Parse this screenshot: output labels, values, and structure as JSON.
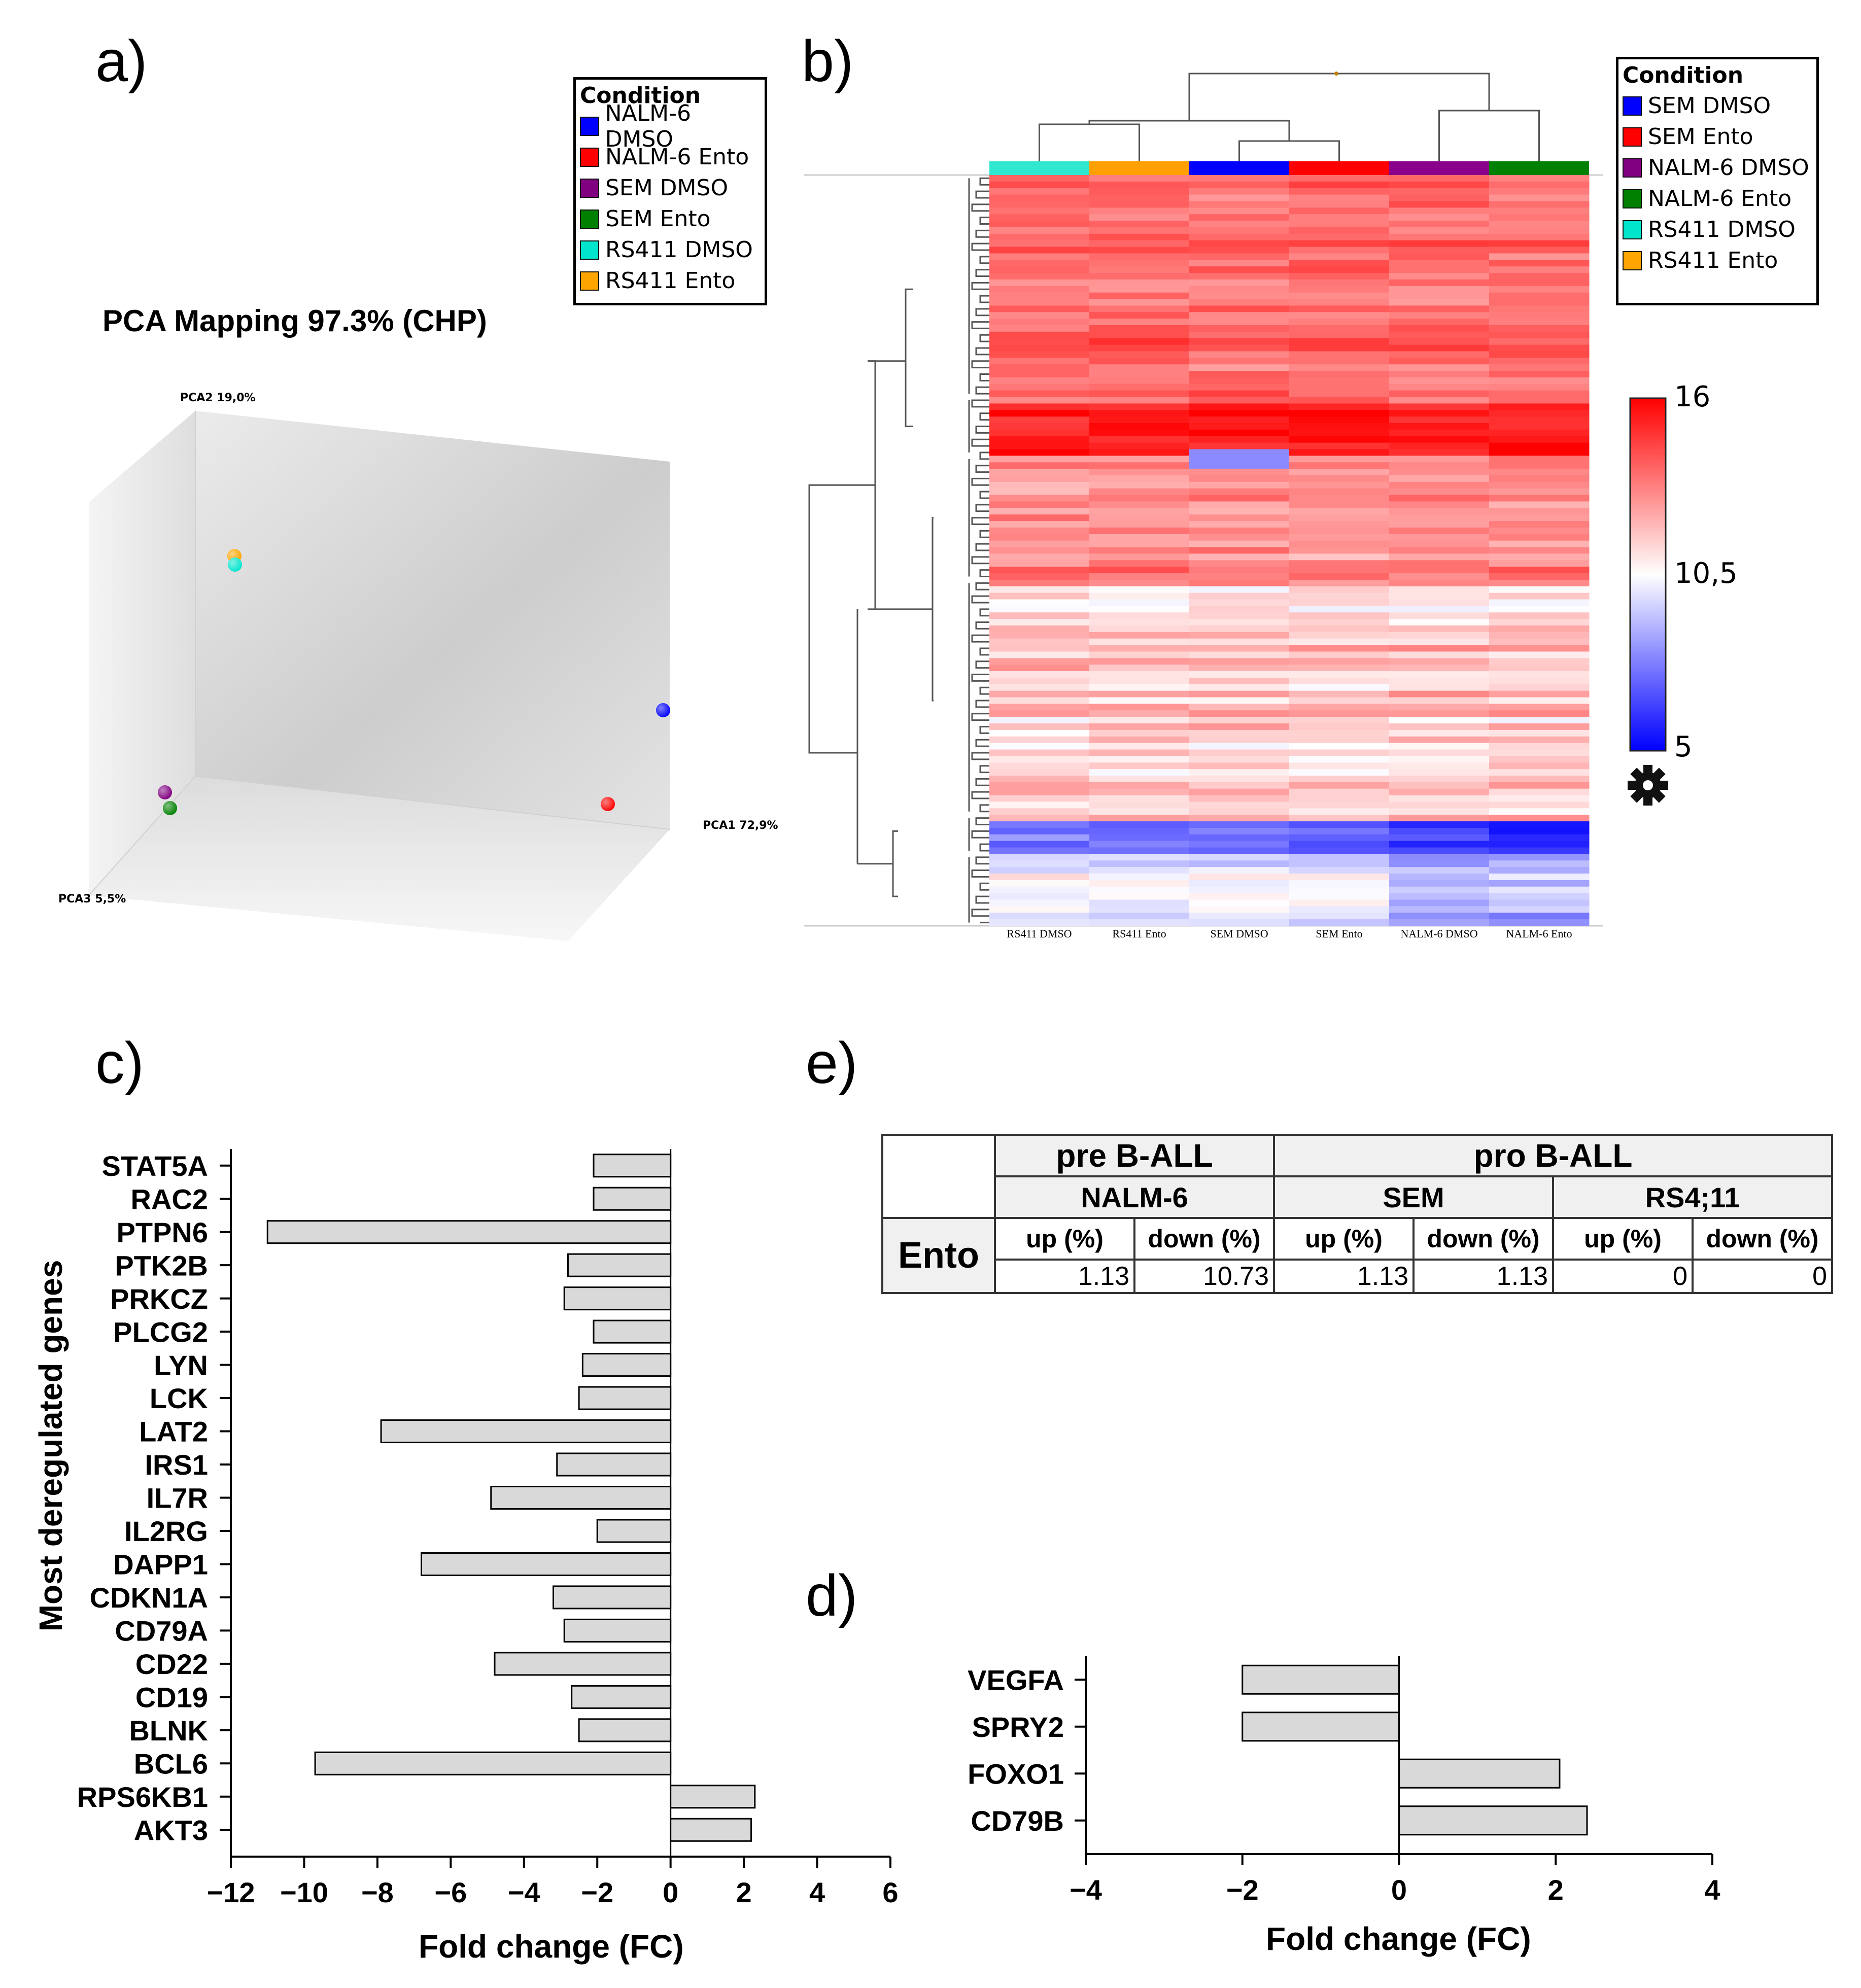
{
  "panels": {
    "a": "a)",
    "b": "b)",
    "c": "c)",
    "d": "d)",
    "e": "e)"
  },
  "panel_a": {
    "title": "PCA Mapping 97.3% (CHP)",
    "legend_title": "Condition",
    "legend": [
      {
        "label": "NALM-6 DMSO",
        "color": "#0000ff"
      },
      {
        "label": "NALM-6 Ento",
        "color": "#ff0000"
      },
      {
        "label": "SEM DMSO",
        "color": "#800080"
      },
      {
        "label": "SEM Ento",
        "color": "#008000"
      },
      {
        "label": "RS411 DMSO",
        "color": "#00e5cc"
      },
      {
        "label": "RS411 Ento",
        "color": "#ffa500"
      }
    ],
    "axis_pca1": "PCA1 72,9%",
    "axis_pca2": "PCA2 19,0%",
    "axis_pca3": "PCA3 5,5%"
  },
  "panel_b": {
    "legend_title": "Condition",
    "legend": [
      {
        "label": "SEM DMSO",
        "color": "#0000ff"
      },
      {
        "label": "SEM Ento",
        "color": "#ff0000"
      },
      {
        "label": "NALM-6 DMSO",
        "color": "#800080"
      },
      {
        "label": "NALM-6 Ento",
        "color": "#008000"
      },
      {
        "label": "RS411 DMSO",
        "color": "#00e5cc"
      },
      {
        "label": "RS411 Ento",
        "color": "#ffa500"
      }
    ],
    "columns": [
      "RS411 DMSO",
      "RS411 Ento",
      "SEM DMSO",
      "SEM Ento",
      "NALM-6 DMSO",
      "NALM-6 Ento"
    ],
    "column_colors": [
      "#30e8d0",
      "#ffa000",
      "#0000ff",
      "#ff0000",
      "#8b008b",
      "#008000"
    ],
    "colorbar": {
      "max": "16",
      "mid": "10,5",
      "min": "5"
    },
    "gear_icon": "gear-icon"
  },
  "panel_e": {
    "group1": "pre B-ALL",
    "group2": "pro B-ALL",
    "lines": [
      "NALM-6",
      "SEM",
      "RS4;11"
    ],
    "row_label": "Ento",
    "col_up": "up (%)",
    "col_down": "down (%)",
    "values": [
      "1.13",
      "10.73",
      "1.13",
      "1.13",
      "0",
      "0"
    ]
  },
  "chart_data": [
    {
      "type": "scatter",
      "title": "PCA Mapping 97.3% (CHP)",
      "xlabel": "PCA1 72,9%",
      "ylabel": "PCA2 19,0%",
      "zlabel": "PCA3 5,5%",
      "points": [
        {
          "name": "NALM-6 DMSO",
          "color": "#0000ff"
        },
        {
          "name": "NALM-6 Ento",
          "color": "#ff0000"
        },
        {
          "name": "SEM DMSO",
          "color": "#800080"
        },
        {
          "name": "SEM Ento",
          "color": "#008000"
        },
        {
          "name": "RS411 DMSO",
          "color": "#00e5cc"
        },
        {
          "name": "RS411 Ento",
          "color": "#ffa500"
        }
      ]
    },
    {
      "type": "heatmap",
      "categories": [
        "RS411 DMSO",
        "RS411 Ento",
        "SEM DMSO",
        "SEM Ento",
        "NALM-6 DMSO",
        "NALM-6 Ento"
      ],
      "color_scale": {
        "min": 5,
        "mid": 10.5,
        "max": 16,
        "min_color": "#0000ff",
        "mid_color": "#ffffff",
        "max_color": "#ff0000"
      }
    },
    {
      "type": "bar",
      "orientation": "horizontal",
      "categories": [
        "STAT5A",
        "RAC2",
        "PTPN6",
        "PTK2B",
        "PRKCZ",
        "PLCG2",
        "LYN",
        "LCK",
        "LAT2",
        "IRS1",
        "IL7R",
        "IL2RG",
        "DAPP1",
        "CDKN1A",
        "CD79A",
        "CD22",
        "CD19",
        "BLNK",
        "BCL6",
        "RPS6KB1",
        "AKT3"
      ],
      "values": [
        -2.1,
        -2.1,
        -11.0,
        -2.8,
        -2.9,
        -2.1,
        -2.4,
        -2.5,
        -7.9,
        -3.1,
        -4.9,
        -2.0,
        -6.8,
        -3.2,
        -2.9,
        -4.8,
        -2.7,
        -2.5,
        -9.7,
        2.3,
        2.2
      ],
      "xlim": [
        -12,
        6
      ],
      "xticks": [
        "−12",
        "−10",
        "−8",
        "−6",
        "−4",
        "−2",
        "0",
        "2",
        "4",
        "6"
      ],
      "xlabel": "Fold change (FC)",
      "ylabel": "Most deregulated genes",
      "bar_color": "#d9d9d9"
    },
    {
      "type": "bar",
      "orientation": "horizontal",
      "categories": [
        "VEGFA",
        "SPRY2",
        "FOXO1",
        "CD79B"
      ],
      "values": [
        -2.0,
        -2.0,
        2.05,
        2.4
      ],
      "xlim": [
        -4,
        4
      ],
      "xticks": [
        "−4",
        "−2",
        "0",
        "2",
        "4"
      ],
      "xlabel": "Fold change (FC)",
      "bar_color": "#d9d9d9"
    }
  ]
}
